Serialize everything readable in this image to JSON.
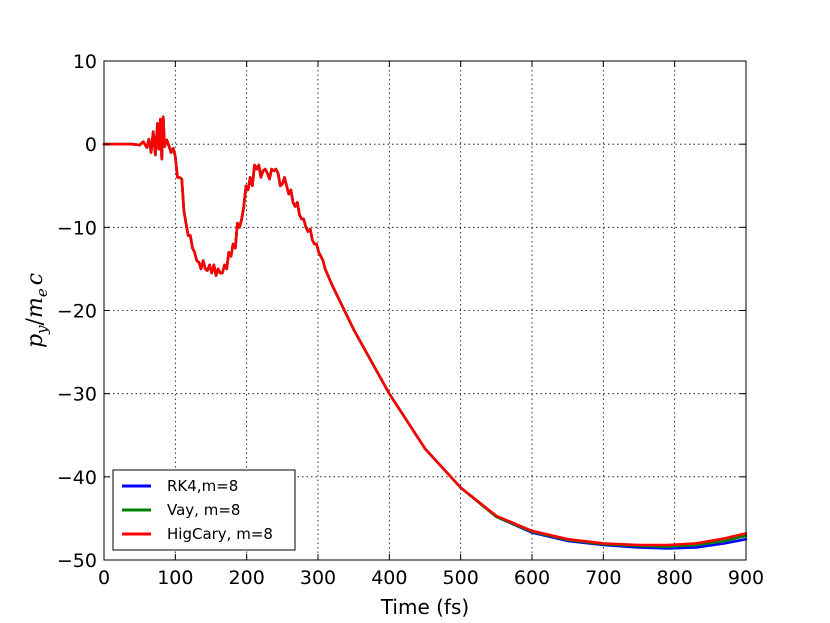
{
  "chart_data": {
    "type": "line",
    "title": "",
    "xlabel": "Time (fs)",
    "ylabel": "p_y/m_e c",
    "ylabel_parts": {
      "base": "p",
      "sub1": "y",
      "slash": "/",
      "m": "m",
      "sub2": "e",
      "c": "c"
    },
    "xlim": [
      0,
      900
    ],
    "ylim": [
      -50,
      10
    ],
    "xticks": [
      0,
      100,
      200,
      300,
      400,
      500,
      600,
      700,
      800,
      900
    ],
    "yticks": [
      10,
      0,
      -10,
      -20,
      -30,
      -40,
      -50
    ],
    "xtick_labels": [
      "0",
      "100",
      "200",
      "300",
      "400",
      "500",
      "600",
      "700",
      "800",
      "900"
    ],
    "ytick_labels": [
      "10",
      "0",
      "−10",
      "−20",
      "−30",
      "−40",
      "−50"
    ],
    "grid": true,
    "legend": {
      "position": "lower-left",
      "entries": [
        "RK4,m=8",
        "Vay, m=8",
        "HigCary, m=8"
      ]
    },
    "series": [
      {
        "name": "RK4,m=8",
        "color": "#0000ff",
        "x": [
          0,
          20,
          40,
          50,
          55,
          60,
          63,
          66,
          69,
          72,
          75,
          77,
          79,
          81,
          83,
          85,
          88,
          91,
          94,
          97,
          100,
          103,
          106,
          109,
          112,
          115,
          118,
          121,
          124,
          127,
          130,
          133,
          136,
          139,
          142,
          145,
          148,
          151,
          154,
          157,
          160,
          163,
          166,
          169,
          172,
          175,
          178,
          181,
          184,
          187,
          190,
          193,
          196,
          199,
          202,
          205,
          208,
          211,
          214,
          217,
          220,
          223,
          226,
          229,
          232,
          235,
          238,
          241,
          244,
          247,
          250,
          253,
          256,
          259,
          262,
          265,
          268,
          271,
          274,
          277,
          280,
          283,
          286,
          289,
          292,
          295,
          298,
          301,
          304,
          307,
          310,
          320,
          350,
          400,
          450,
          500,
          550,
          600,
          650,
          700,
          750,
          790,
          830,
          870,
          900
        ],
        "y": [
          0,
          0,
          0,
          -0.1,
          0.3,
          -0.4,
          0.6,
          -1.0,
          1.5,
          -1.3,
          2.5,
          -0.6,
          3.0,
          -1.8,
          3.3,
          -0.3,
          0.5,
          -0.2,
          -1.0,
          -0.5,
          -1.5,
          -4.0,
          -4.0,
          -4.2,
          -8.0,
          -9.5,
          -11.0,
          -11.0,
          -12.5,
          -13.0,
          -14.0,
          -14.2,
          -15.0,
          -14.0,
          -15.0,
          -15.2,
          -14.5,
          -15.5,
          -14.5,
          -15.8,
          -15.0,
          -15.5,
          -15.5,
          -14.5,
          -15.0,
          -13.0,
          -13.5,
          -12.0,
          -12.5,
          -9.5,
          -10.0,
          -9.0,
          -7.5,
          -5.0,
          -5.5,
          -4.0,
          -5.0,
          -2.5,
          -3.0,
          -2.5,
          -4.0,
          -3.2,
          -3.0,
          -3.5,
          -4.2,
          -3.0,
          -3.2,
          -3.0,
          -3.5,
          -5.0,
          -4.8,
          -4.0,
          -5.0,
          -6.0,
          -5.5,
          -7.0,
          -7.5,
          -7.0,
          -8.5,
          -9.0,
          -9.0,
          -10.0,
          -10.5,
          -10.2,
          -11.5,
          -12.0,
          -12.0,
          -13.0,
          -13.5,
          -14.0,
          -15.0,
          -17.0,
          -22.3,
          -30.0,
          -36.6,
          -41.3,
          -44.8,
          -46.7,
          -47.7,
          -48.2,
          -48.5,
          -48.6,
          -48.5,
          -48.0,
          -47.5
        ]
      },
      {
        "name": "Vay, m=8",
        "color": "#008000",
        "x": [
          0,
          20,
          40,
          50,
          55,
          60,
          63,
          66,
          69,
          72,
          75,
          77,
          79,
          81,
          83,
          85,
          88,
          91,
          94,
          97,
          100,
          103,
          106,
          109,
          112,
          115,
          118,
          121,
          124,
          127,
          130,
          133,
          136,
          139,
          142,
          145,
          148,
          151,
          154,
          157,
          160,
          163,
          166,
          169,
          172,
          175,
          178,
          181,
          184,
          187,
          190,
          193,
          196,
          199,
          202,
          205,
          208,
          211,
          214,
          217,
          220,
          223,
          226,
          229,
          232,
          235,
          238,
          241,
          244,
          247,
          250,
          253,
          256,
          259,
          262,
          265,
          268,
          271,
          274,
          277,
          280,
          283,
          286,
          289,
          292,
          295,
          298,
          301,
          304,
          307,
          310,
          320,
          350,
          400,
          450,
          500,
          550,
          600,
          650,
          700,
          750,
          790,
          830,
          870,
          900
        ],
        "y": [
          0,
          0,
          0,
          -0.1,
          0.3,
          -0.4,
          0.6,
          -1.0,
          1.5,
          -1.3,
          2.5,
          -0.6,
          3.0,
          -1.8,
          3.3,
          -0.3,
          0.5,
          -0.2,
          -1.0,
          -0.5,
          -1.5,
          -4.0,
          -4.0,
          -4.2,
          -8.0,
          -9.5,
          -11.0,
          -11.0,
          -12.5,
          -13.0,
          -14.0,
          -14.2,
          -15.0,
          -14.0,
          -15.0,
          -15.2,
          -14.5,
          -15.5,
          -14.5,
          -15.8,
          -15.0,
          -15.5,
          -15.5,
          -14.5,
          -15.0,
          -13.0,
          -13.5,
          -12.0,
          -12.5,
          -9.5,
          -10.0,
          -9.0,
          -7.5,
          -5.0,
          -5.5,
          -4.0,
          -5.0,
          -2.5,
          -3.0,
          -2.5,
          -4.0,
          -3.2,
          -3.0,
          -3.5,
          -4.2,
          -3.0,
          -3.2,
          -3.0,
          -3.5,
          -5.0,
          -4.8,
          -4.0,
          -5.0,
          -6.0,
          -5.5,
          -7.0,
          -7.5,
          -7.0,
          -8.5,
          -9.0,
          -9.0,
          -10.0,
          -10.5,
          -10.2,
          -11.5,
          -12.0,
          -12.0,
          -13.0,
          -13.5,
          -14.0,
          -15.0,
          -17.0,
          -22.3,
          -30.0,
          -36.6,
          -41.3,
          -44.8,
          -46.6,
          -47.6,
          -48.1,
          -48.3,
          -48.4,
          -48.2,
          -47.7,
          -47.1
        ]
      },
      {
        "name": "HigCary, m=8",
        "color": "#ff0000",
        "x": [
          0,
          20,
          40,
          50,
          55,
          60,
          63,
          66,
          69,
          72,
          75,
          77,
          79,
          81,
          83,
          85,
          88,
          91,
          94,
          97,
          100,
          103,
          106,
          109,
          112,
          115,
          118,
          121,
          124,
          127,
          130,
          133,
          136,
          139,
          142,
          145,
          148,
          151,
          154,
          157,
          160,
          163,
          166,
          169,
          172,
          175,
          178,
          181,
          184,
          187,
          190,
          193,
          196,
          199,
          202,
          205,
          208,
          211,
          214,
          217,
          220,
          223,
          226,
          229,
          232,
          235,
          238,
          241,
          244,
          247,
          250,
          253,
          256,
          259,
          262,
          265,
          268,
          271,
          274,
          277,
          280,
          283,
          286,
          289,
          292,
          295,
          298,
          301,
          304,
          307,
          310,
          320,
          350,
          400,
          450,
          500,
          550,
          600,
          650,
          700,
          750,
          790,
          830,
          870,
          900
        ],
        "y": [
          0,
          0,
          0,
          -0.1,
          0.3,
          -0.4,
          0.6,
          -1.0,
          1.5,
          -1.3,
          2.5,
          -0.6,
          3.0,
          -1.8,
          3.3,
          -0.3,
          0.5,
          -0.2,
          -1.0,
          -0.5,
          -1.5,
          -4.0,
          -4.0,
          -4.2,
          -8.0,
          -9.5,
          -11.0,
          -11.0,
          -12.5,
          -13.0,
          -14.0,
          -14.2,
          -15.0,
          -14.0,
          -15.0,
          -15.2,
          -14.5,
          -15.5,
          -14.5,
          -15.8,
          -15.0,
          -15.5,
          -15.5,
          -14.5,
          -15.0,
          -13.0,
          -13.5,
          -12.0,
          -12.5,
          -9.5,
          -10.0,
          -9.0,
          -7.5,
          -5.0,
          -5.5,
          -4.0,
          -5.0,
          -2.5,
          -3.0,
          -2.5,
          -4.0,
          -3.2,
          -3.0,
          -3.5,
          -4.2,
          -3.0,
          -3.2,
          -3.0,
          -3.5,
          -5.0,
          -4.8,
          -4.0,
          -5.0,
          -6.0,
          -5.5,
          -7.0,
          -7.5,
          -7.0,
          -8.5,
          -9.0,
          -9.0,
          -10.0,
          -10.5,
          -10.2,
          -11.5,
          -12.0,
          -12.0,
          -13.0,
          -13.5,
          -14.0,
          -15.0,
          -17.0,
          -22.3,
          -30.0,
          -36.6,
          -41.3,
          -44.7,
          -46.5,
          -47.5,
          -48.0,
          -48.2,
          -48.2,
          -48.0,
          -47.4,
          -46.8
        ]
      }
    ]
  }
}
